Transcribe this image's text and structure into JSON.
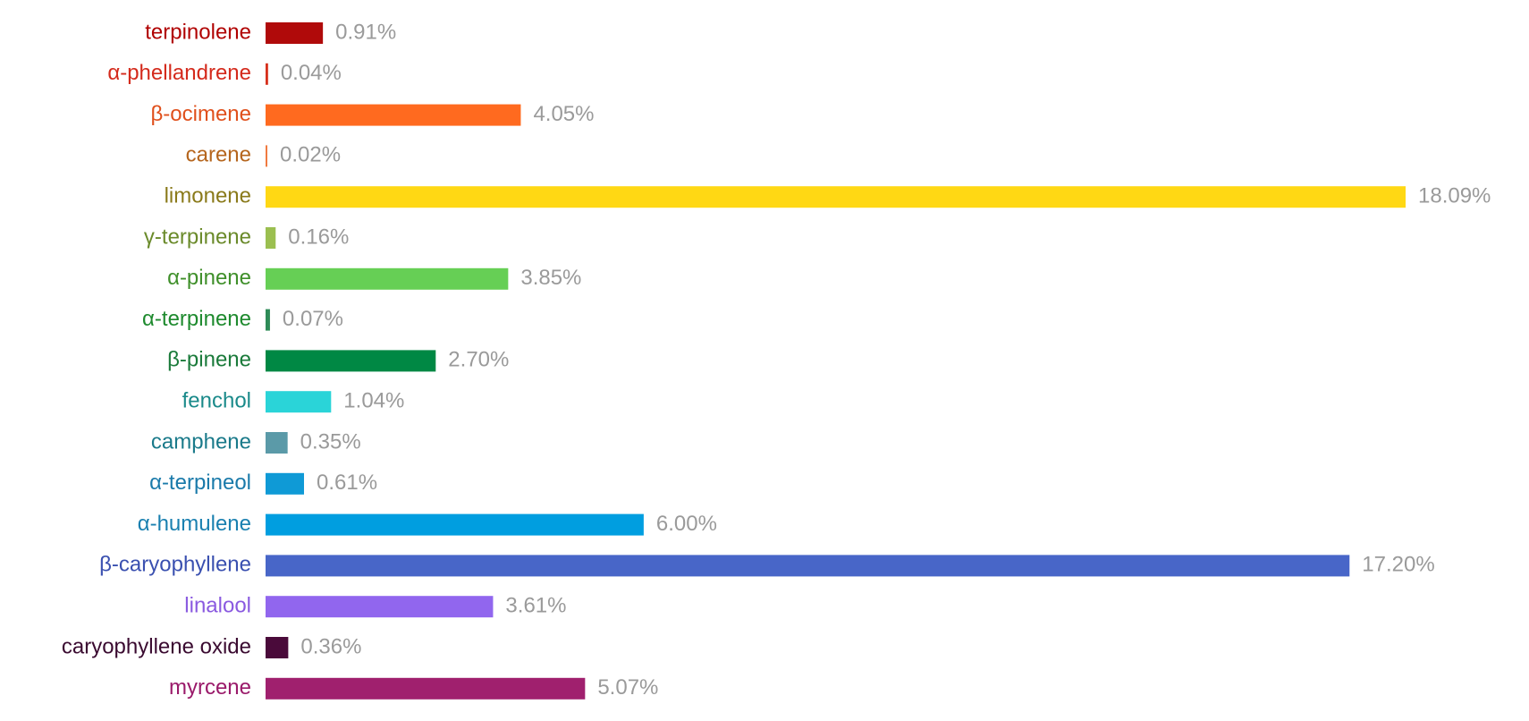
{
  "chart_data": {
    "type": "bar",
    "orientation": "horizontal",
    "categories": [
      "terpinolene",
      "α-phellandrene",
      "β-ocimene",
      "carene",
      "limonene",
      "γ-terpinene",
      "α-pinene",
      "α-terpinene",
      "β-pinene",
      "fenchol",
      "camphene",
      "α-terpineol",
      "α-humulene",
      "β-caryophyllene",
      "linalool",
      "caryophyllene oxide",
      "myrcene"
    ],
    "values": [
      0.91,
      0.04,
      4.05,
      0.02,
      18.09,
      0.16,
      3.85,
      0.07,
      2.7,
      1.04,
      0.35,
      0.61,
      6,
      17.2,
      3.61,
      0.36,
      5.07
    ],
    "value_labels": [
      "0.91%",
      "0.04%",
      "4.05%",
      "0.02%",
      "18.09%",
      "0.16%",
      "3.85%",
      "0.07%",
      "2.70%",
      "1.04%",
      "0.35%",
      "0.61%",
      "6.00%",
      "17.20%",
      "3.61%",
      "0.36%",
      "5.07%"
    ],
    "colors": [
      "#b00a0a",
      "#d6301c",
      "#ff6a1f",
      "#f07a40",
      "#ffd814",
      "#9bbf50",
      "#66cf55",
      "#2e8b57",
      "#008844",
      "#2ad4d8",
      "#5b9aa8",
      "#0f9ad6",
      "#009ee0",
      "#4866c8",
      "#9166ee",
      "#4a0a3a",
      "#a0206e"
    ],
    "label_colors": [
      "#b00000",
      "#d42a1c",
      "#e0501c",
      "#b5651d",
      "#8a7a1a",
      "#6a8a2a",
      "#3f8f2a",
      "#1e8a2e",
      "#1a7a3a",
      "#1a8a8a",
      "#1a7a8a",
      "#1a7aaa",
      "#1a80b0",
      "#3a50b0",
      "#8a5ae0",
      "#3a0a30",
      "#9a1a6a"
    ]
  }
}
